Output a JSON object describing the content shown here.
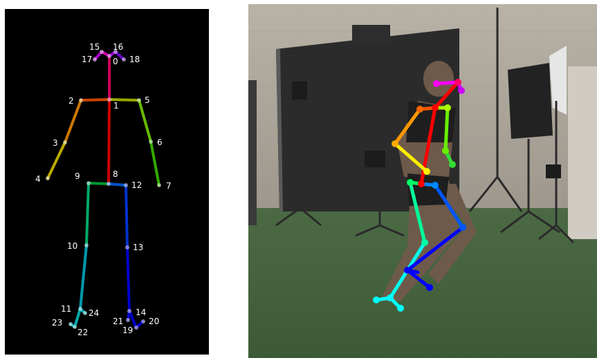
{
  "left_panel": {
    "labels": [
      {
        "id": 0,
        "text": "0"
      },
      {
        "id": 1,
        "text": "1"
      },
      {
        "id": 2,
        "text": "2"
      },
      {
        "id": 3,
        "text": "3"
      },
      {
        "id": 4,
        "text": "4"
      },
      {
        "id": 5,
        "text": "5"
      },
      {
        "id": 6,
        "text": "6"
      },
      {
        "id": 7,
        "text": "7"
      },
      {
        "id": 8,
        "text": "8"
      },
      {
        "id": 9,
        "text": "9"
      },
      {
        "id": 10,
        "text": "10"
      },
      {
        "id": 11,
        "text": "11"
      },
      {
        "id": 12,
        "text": "12"
      },
      {
        "id": 13,
        "text": "13"
      },
      {
        "id": 14,
        "text": "14"
      },
      {
        "id": 15,
        "text": "15"
      },
      {
        "id": 16,
        "text": "16"
      },
      {
        "id": 17,
        "text": "17"
      },
      {
        "id": 18,
        "text": "18"
      },
      {
        "id": 19,
        "text": "19"
      },
      {
        "id": 20,
        "text": "20"
      },
      {
        "id": 21,
        "text": "21"
      },
      {
        "id": 22,
        "text": "22"
      },
      {
        "id": 23,
        "text": "23"
      },
      {
        "id": 24,
        "text": "24"
      }
    ],
    "background_color": "#000000"
  },
  "right_panel": {
    "scene": "photo of person running in motion-capture studio with skeleton overlay"
  },
  "colors": {
    "neck": "#ff0000",
    "right_arm": "#ff8c00",
    "right_forearm": "#ffd700",
    "left_arm": "#88dd00",
    "left_forearm": "#33cc33",
    "right_leg": "#00ee88",
    "right_shin": "#00dddd",
    "left_leg": "#0055ff",
    "left_shin": "#0000ee",
    "head": "#ff00ff"
  }
}
